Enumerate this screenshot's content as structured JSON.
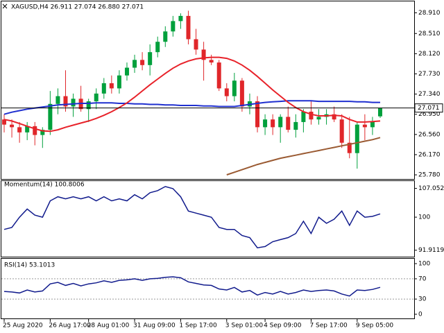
{
  "chart_data": {
    "type": "candlestick",
    "title": "XAGUSD,H4  26.911 27.074 26.880 27.071",
    "last_price": 27.071,
    "categories": [
      "25 Aug 2020",
      null,
      null,
      null,
      null,
      null,
      "26 Aug 17:00",
      null,
      null,
      null,
      null,
      "28 Aug 01:00",
      null,
      null,
      null,
      null,
      null,
      "31 Aug 09:00",
      null,
      null,
      null,
      null,
      null,
      "1 Sep 17:00",
      null,
      null,
      null,
      null,
      null,
      "3 Sep 01:00",
      null,
      null,
      null,
      null,
      "4 Sep 09:00",
      null,
      null,
      null,
      null,
      null,
      "7 Sep 17:00",
      null,
      null,
      null,
      null,
      null,
      "9 Sep 05:00",
      null,
      null,
      null
    ],
    "open": [
      26.85,
      26.75,
      26.7,
      26.6,
      26.72,
      26.55,
      26.65,
      27.15,
      27.3,
      27.1,
      27.25,
      27.05,
      27.2,
      27.35,
      27.55,
      27.45,
      27.7,
      27.85,
      28.0,
      27.9,
      28.15,
      28.35,
      28.55,
      28.75,
      28.85,
      28.4,
      28.2,
      28.0,
      27.95,
      27.45,
      27.3,
      27.6,
      27.1,
      27.2,
      26.7,
      26.85,
      26.7,
      26.9,
      26.65,
      26.8,
      27.0,
      26.85,
      26.9,
      26.95,
      26.85,
      26.4,
      26.2,
      26.75,
      26.7,
      26.91
    ],
    "high": [
      26.95,
      26.85,
      26.8,
      26.8,
      26.8,
      26.7,
      27.4,
      27.45,
      27.8,
      27.35,
      27.5,
      27.25,
      27.45,
      27.65,
      27.7,
      27.8,
      27.95,
      28.1,
      28.15,
      28.3,
      28.45,
      28.65,
      28.85,
      28.9,
      28.95,
      28.6,
      28.35,
      28.1,
      28.0,
      27.55,
      27.75,
      27.65,
      27.35,
      27.3,
      26.95,
      26.95,
      26.95,
      27.1,
      26.95,
      27.05,
      27.2,
      27.05,
      27.05,
      27.1,
      26.95,
      26.9,
      26.8,
      26.95,
      26.9,
      27.074
    ],
    "low": [
      26.6,
      26.5,
      26.4,
      26.45,
      26.35,
      26.3,
      26.55,
      26.95,
      27.0,
      26.9,
      27.0,
      26.8,
      27.05,
      27.25,
      27.35,
      27.35,
      27.6,
      27.75,
      27.8,
      27.7,
      28.05,
      28.25,
      28.45,
      28.6,
      28.3,
      28.1,
      27.6,
      27.9,
      27.4,
      27.2,
      27.2,
      27.0,
      26.95,
      26.6,
      26.55,
      26.55,
      26.4,
      26.6,
      26.5,
      26.6,
      26.75,
      26.75,
      26.75,
      26.8,
      26.3,
      26.1,
      25.9,
      26.45,
      26.55,
      26.88
    ],
    "close": [
      26.75,
      26.7,
      26.6,
      26.72,
      26.55,
      26.65,
      27.15,
      27.3,
      27.1,
      27.25,
      27.05,
      27.2,
      27.35,
      27.55,
      27.45,
      27.7,
      27.85,
      28.0,
      27.9,
      28.15,
      28.35,
      28.55,
      28.75,
      28.85,
      28.4,
      28.2,
      28.0,
      27.95,
      27.45,
      27.3,
      27.6,
      27.1,
      27.2,
      26.7,
      26.85,
      26.7,
      26.9,
      26.65,
      26.8,
      27.0,
      26.85,
      26.9,
      26.95,
      26.85,
      26.4,
      26.2,
      26.75,
      26.7,
      26.8,
      27.071
    ],
    "up_color": "#00a03c",
    "down_color": "#e0262a",
    "ylim": [
      25.7,
      29.05
    ],
    "yticks": [
      {
        "value": 28.91,
        "label": "28.910"
      },
      {
        "value": 28.51,
        "label": "28.510"
      },
      {
        "value": 28.12,
        "label": "28.120"
      },
      {
        "value": 27.73,
        "label": "27.730"
      },
      {
        "value": 27.34,
        "label": "27.340"
      },
      {
        "value": 26.95,
        "label": "26.950"
      },
      {
        "value": 26.56,
        "label": "26.560"
      },
      {
        "value": 26.17,
        "label": "26.170"
      },
      {
        "value": 25.78,
        "label": "25.780"
      }
    ],
    "series": [
      {
        "color": "#1f2fcf",
        "values": [
          26.95,
          26.99,
          27.02,
          27.05,
          27.07,
          27.09,
          27.11,
          27.13,
          27.14,
          27.15,
          27.16,
          27.16,
          27.17,
          27.17,
          27.17,
          27.16,
          27.16,
          27.15,
          27.15,
          27.14,
          27.14,
          27.13,
          27.13,
          27.12,
          27.12,
          27.12,
          27.11,
          27.11,
          27.1,
          27.1,
          27.1,
          27.12,
          27.14,
          27.16,
          27.18,
          27.19,
          27.2,
          27.21,
          27.21,
          27.21,
          27.21,
          27.2,
          27.2,
          27.2,
          27.2,
          27.2,
          27.19,
          27.19,
          27.18,
          27.18
        ]
      },
      {
        "color": "#e8222a",
        "values": [
          26.85,
          26.82,
          26.77,
          26.72,
          26.67,
          26.63,
          26.62,
          26.65,
          26.7,
          26.74,
          26.78,
          26.82,
          26.87,
          26.93,
          27.0,
          27.08,
          27.17,
          27.28,
          27.4,
          27.52,
          27.63,
          27.74,
          27.84,
          27.92,
          27.98,
          28.02,
          28.04,
          28.05,
          28.05,
          28.03,
          27.98,
          27.9,
          27.8,
          27.68,
          27.55,
          27.42,
          27.3,
          27.18,
          27.08,
          27.0,
          26.95,
          26.92,
          26.92,
          26.93,
          26.92,
          26.85,
          26.8,
          26.8,
          26.81,
          26.82
        ]
      },
      {
        "color": "#9a5a32",
        "values": [
          null,
          null,
          null,
          null,
          null,
          null,
          null,
          null,
          null,
          null,
          null,
          null,
          null,
          null,
          null,
          null,
          null,
          null,
          null,
          null,
          null,
          null,
          null,
          null,
          null,
          null,
          null,
          null,
          null,
          25.78,
          25.83,
          25.88,
          25.93,
          25.98,
          26.02,
          26.06,
          26.1,
          26.13,
          26.16,
          26.19,
          26.22,
          26.25,
          26.28,
          26.31,
          26.34,
          26.37,
          26.4,
          26.43,
          26.46,
          26.5
        ]
      }
    ],
    "momentum": {
      "title": "Momentum(14) 100.8006",
      "color": "#101a8c",
      "ylim": [
        91.0,
        108.0
      ],
      "yticks": [
        {
          "value": 107.0522,
          "label": "107.0522"
        },
        100,
        {
          "value": 91.9119,
          "label": "91.9119"
        }
      ],
      "values": [
        97.0,
        97.5,
        100.0,
        102.0,
        100.5,
        100.0,
        104.0,
        105.0,
        104.5,
        105.0,
        104.5,
        105.0,
        104.0,
        105.0,
        104.0,
        104.5,
        104.0,
        105.5,
        104.5,
        106.0,
        106.5,
        107.5,
        107.0,
        105.0,
        101.5,
        101.0,
        100.5,
        100.0,
        97.5,
        97.0,
        97.0,
        95.5,
        95.0,
        92.5,
        92.8,
        94.0,
        94.5,
        95.0,
        96.0,
        99.0,
        96.0,
        100.0,
        98.5,
        99.5,
        101.5,
        98.0,
        101.5,
        100.0,
        100.2,
        100.8006
      ]
    },
    "rsi": {
      "title": "RSI(14) 53.1013",
      "color": "#101a8c",
      "ylim": [
        0,
        100
      ],
      "yticks": [
        100,
        70,
        30,
        0
      ],
      "levels": [
        70,
        30
      ],
      "values": [
        45,
        44,
        42,
        48,
        44,
        46,
        60,
        63,
        57,
        61,
        56,
        60,
        62,
        66,
        63,
        67,
        68,
        70,
        67,
        70,
        71,
        73,
        74,
        72,
        64,
        61,
        58,
        57,
        50,
        48,
        53,
        44,
        47,
        38,
        43,
        40,
        45,
        40,
        43,
        48,
        45,
        47,
        48,
        46,
        40,
        36,
        48,
        47,
        49,
        53.1013
      ]
    }
  }
}
